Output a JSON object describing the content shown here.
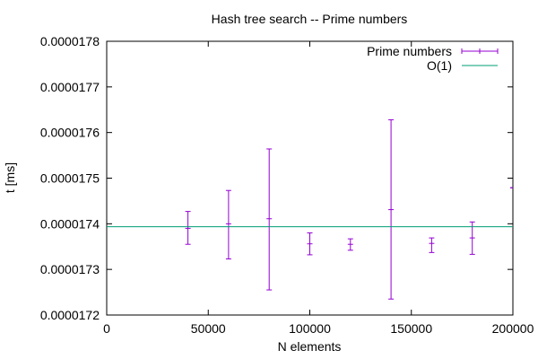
{
  "chart_data": {
    "type": "scatter",
    "title": "Hash tree search -- Prime numbers",
    "xlabel": "N elements",
    "ylabel": "t [ms]",
    "xlim": [
      0,
      200000
    ],
    "ylim": [
      1.72e-05,
      1.78e-05
    ],
    "x_ticks": [
      0,
      50000,
      100000,
      150000,
      200000
    ],
    "x_tick_labels": [
      "0",
      "50000",
      "100000",
      "150000",
      "200000"
    ],
    "y_ticks": [
      1.72e-05,
      1.73e-05,
      1.74e-05,
      1.75e-05,
      1.76e-05,
      1.77e-05,
      1.78e-05
    ],
    "y_tick_labels": [
      "0.0000172",
      "0.0000173",
      "0.0000174",
      "0.0000175",
      "0.0000176",
      "0.0000177",
      "0.0000178"
    ],
    "grid": false,
    "legend_position": "top-right",
    "series": [
      {
        "name": "Prime numbers",
        "kind": "errorbars",
        "color": "#9400d3",
        "points": [
          {
            "x": 40000,
            "y": 1.739e-05,
            "low": 1.7355e-05,
            "high": 1.7427e-05
          },
          {
            "x": 60000,
            "y": 1.74e-05,
            "low": 1.7323e-05,
            "high": 1.7473e-05
          },
          {
            "x": 80000,
            "y": 1.7411e-05,
            "low": 1.7255e-05,
            "high": 1.7564e-05
          },
          {
            "x": 100000,
            "y": 1.7356e-05,
            "low": 1.7332e-05,
            "high": 1.738e-05
          },
          {
            "x": 120000,
            "y": 1.7355e-05,
            "low": 1.7342e-05,
            "high": 1.7367e-05
          },
          {
            "x": 140000,
            "y": 1.7431e-05,
            "low": 1.7235e-05,
            "high": 1.7628e-05
          },
          {
            "x": 160000,
            "y": 1.7357e-05,
            "low": 1.7337e-05,
            "high": 1.7369e-05
          },
          {
            "x": 180000,
            "y": 1.7369e-05,
            "low": 1.7333e-05,
            "high": 1.7404e-05
          },
          {
            "x": 200000,
            "y": 1.7479e-05,
            "low": 1.7479e-05,
            "high": 1.7479e-05
          }
        ]
      },
      {
        "name": "O(1)",
        "kind": "line",
        "color": "#009e73",
        "y": 1.73935e-05
      }
    ]
  }
}
